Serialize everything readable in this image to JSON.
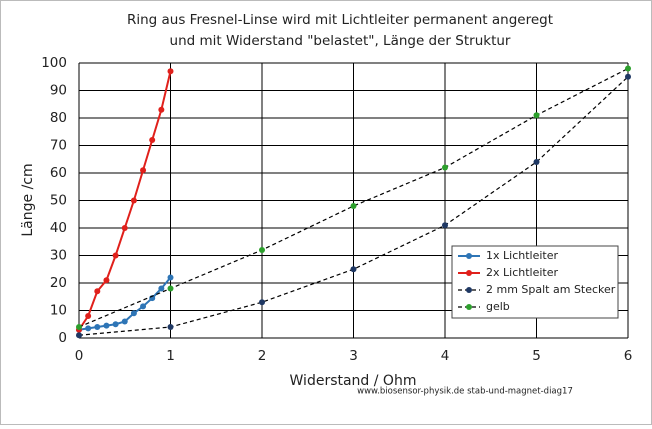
{
  "chart_data": {
    "type": "line",
    "title": [
      "Ring aus Fresnel-Linse wird mit Lichtleiter permanent angeregt",
      "und mit Widerstand \"belastet\", Länge der Struktur"
    ],
    "x_label": "Widerstand / Ohm",
    "y_label": "Länge /cm",
    "annotation": "www.biosensor-physik.de  stab-und-magnet-diag17",
    "xlim": [
      0,
      6
    ],
    "xticks": [
      0,
      1,
      2,
      3,
      4,
      5,
      6
    ],
    "ylim": [
      0,
      100
    ],
    "yticks": [
      0,
      10,
      20,
      30,
      40,
      50,
      60,
      70,
      80,
      90,
      100
    ],
    "grid": true,
    "legend": "lower right",
    "series": [
      {
        "name": "1x Lichtleiter",
        "color": "#2e75b6",
        "line_style": "solid",
        "x": [
          0,
          0.1,
          0.2,
          0.3,
          0.4,
          0.5,
          0.6,
          0.7,
          0.8,
          0.9,
          1.0
        ],
        "values": [
          3,
          3.5,
          4,
          4.5,
          5,
          6,
          9,
          11.5,
          14.5,
          18,
          22
        ]
      },
      {
        "name": "2x Lichtleiter",
        "color": "#e0201b",
        "line_style": "solid",
        "x": [
          0,
          0.1,
          0.2,
          0.3,
          0.4,
          0.5,
          0.6,
          0.7,
          0.8,
          0.9,
          1.0
        ],
        "values": [
          3,
          8,
          17,
          21,
          30,
          40,
          50,
          61,
          72,
          83,
          97
        ]
      },
      {
        "name": "2 mm Spalt am Stecker",
        "color": "#1f3864",
        "line_style": "dashed",
        "x": [
          0,
          1,
          2,
          3,
          4,
          5,
          6
        ],
        "values": [
          1,
          4,
          13,
          25,
          41,
          64,
          95
        ]
      },
      {
        "name": "gelb",
        "color": "#2ca02c",
        "line_style": "dashed",
        "x": [
          0,
          1,
          2,
          3,
          4,
          5,
          6
        ],
        "values": [
          4,
          18,
          32,
          48,
          62,
          81,
          98
        ]
      }
    ]
  }
}
